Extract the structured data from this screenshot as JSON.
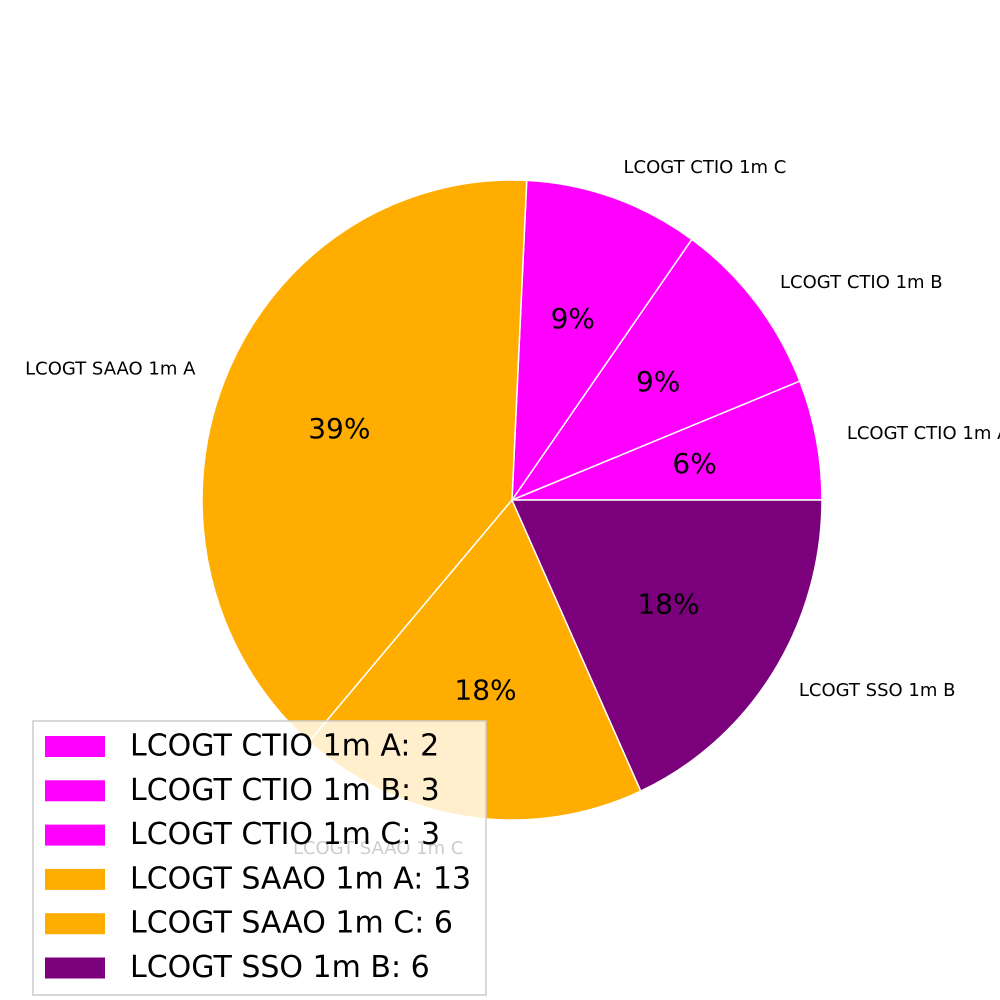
{
  "chart_data": {
    "type": "pie",
    "categories": [
      "LCOGT CTIO 1m A",
      "LCOGT CTIO 1m B",
      "LCOGT CTIO 1m C",
      "LCOGT SAAO 1m A",
      "LCOGT SAAO 1m C",
      "LCOGT SSO 1m B"
    ],
    "values": [
      2,
      3,
      3,
      13,
      6,
      6
    ],
    "percent_labels": [
      "6%",
      "9%",
      "9%",
      "39%",
      "18%",
      "18%"
    ],
    "colors": [
      "#ff00ff",
      "#ff00ff",
      "#ff00ff",
      "#ffad00",
      "#ffad00",
      "#7b007b"
    ],
    "legend_entries": [
      "LCOGT CTIO 1m A: 2",
      "LCOGT CTIO 1m B: 3",
      "LCOGT CTIO 1m C: 3",
      "LCOGT SAAO 1m A: 13",
      "LCOGT SAAO 1m C: 6",
      "LCOGT SSO 1m B: 6"
    ],
    "start_angle": 0,
    "direction": "counterclockwise",
    "legend_position": "lower-left"
  }
}
